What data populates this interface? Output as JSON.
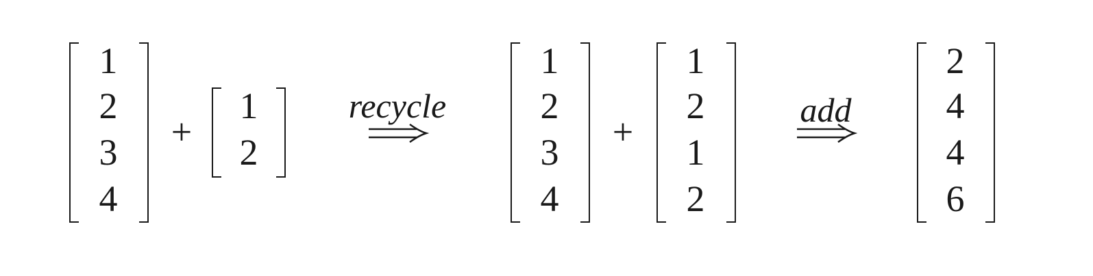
{
  "expression": {
    "left_vector": [
      "1",
      "2",
      "3",
      "4"
    ],
    "plus_1": "+",
    "short_vector": [
      "1",
      "2"
    ],
    "arrow_1_label": "recycle",
    "middle_vector": [
      "1",
      "2",
      "3",
      "4"
    ],
    "plus_2": "+",
    "recycled_vector": [
      "1",
      "2",
      "1",
      "2"
    ],
    "arrow_2_label": "add",
    "result_vector": [
      "2",
      "4",
      "4",
      "6"
    ]
  }
}
